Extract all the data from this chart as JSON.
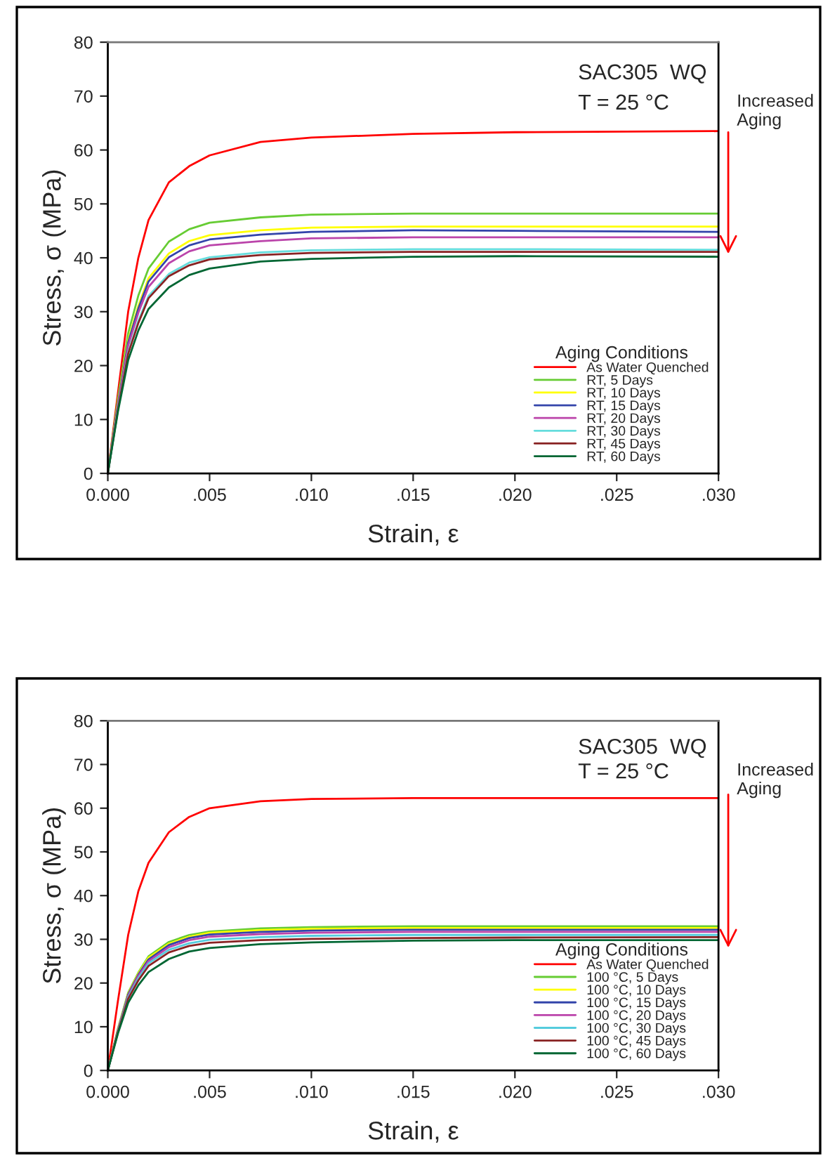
{
  "chart_data": [
    {
      "type": "line",
      "xlabel": "Strain, ε",
      "ylabel": "Stress, σ (MPa)",
      "legend_title": "Aging Conditions",
      "legend": "bottom right",
      "grid": false,
      "marker": "none",
      "line_style": "solid",
      "annotations": [
        "SAC305  WQ",
        "T = 25 °C",
        "Increased\nAging"
      ],
      "xlim": [
        0,
        0.03
      ],
      "ylim": [
        0,
        80
      ],
      "xticks": [
        {
          "value": 0,
          "label": "0.000"
        },
        {
          "value": 0.005,
          "label": ".005"
        },
        {
          "value": 0.01,
          "label": ".010"
        },
        {
          "value": 0.015,
          "label": ".015"
        },
        {
          "value": 0.02,
          "label": ".020"
        },
        {
          "value": 0.025,
          "label": ".025"
        },
        {
          "value": 0.03,
          "label": ".030"
        }
      ],
      "yticks": [
        0,
        10,
        20,
        30,
        40,
        50,
        60,
        70,
        80
      ],
      "x": [
        0,
        0.0005,
        0.001,
        0.0015,
        0.002,
        0.003,
        0.004,
        0.005,
        0.0075,
        0.01,
        0.015,
        0.02,
        0.03
      ],
      "series": [
        {
          "name": "As Water Quenched",
          "color": "#ff0000",
          "values": [
            0,
            15,
            30,
            40,
            47,
            54,
            57,
            59,
            61.5,
            62.3,
            63,
            63.3,
            63.5
          ]
        },
        {
          "name": "RT, 5 Days",
          "color": "#66cc33",
          "values": [
            0,
            14,
            26,
            33,
            38,
            43,
            45.3,
            46.5,
            47.5,
            48,
            48.2,
            48.2,
            48.2
          ]
        },
        {
          "name": "RT, 10 Days",
          "color": "#ffff00",
          "values": [
            0,
            13.3,
            24.7,
            31.1,
            36.2,
            40.8,
            43.1,
            44.2,
            45.1,
            45.6,
            45.8,
            45.8,
            45.8
          ]
        },
        {
          "name": "RT, 15 Days",
          "color": "#3344aa",
          "values": [
            0,
            13,
            24.3,
            30.6,
            35.6,
            40.1,
            42.3,
            43.4,
            44.3,
            44.8,
            45.1,
            45,
            44.8
          ]
        },
        {
          "name": "RT, 20 Days",
          "color": "#bb44aa",
          "values": [
            0,
            12.7,
            23.7,
            29.8,
            34.6,
            39,
            41.2,
            42.3,
            43.1,
            43.6,
            43.8,
            43.8,
            43.8
          ]
        },
        {
          "name": "RT, 30 Days",
          "color": "#66dddd",
          "values": [
            0,
            12.1,
            22.5,
            28.3,
            32.9,
            37,
            39.1,
            40.1,
            41,
            41.4,
            41.6,
            41.6,
            41.5
          ]
        },
        {
          "name": "RT, 45 Days",
          "color": "#882222",
          "values": [
            0,
            11.9,
            22.2,
            27.9,
            32.5,
            36.6,
            38.6,
            39.7,
            40.5,
            40.9,
            41.1,
            41.1,
            41.1
          ]
        },
        {
          "name": "RT, 60 Days",
          "color": "#006633",
          "values": [
            0,
            11.5,
            21,
            26.5,
            30.5,
            34.5,
            36.8,
            38,
            39.3,
            39.8,
            40.2,
            40.3,
            40.2
          ]
        }
      ]
    },
    {
      "type": "line",
      "xlabel": "Strain, ε",
      "ylabel": "Stress, σ (MPa)",
      "legend_title": "Aging Conditions",
      "legend": "bottom right",
      "grid": false,
      "marker": "none",
      "line_style": "solid",
      "annotations": [
        "SAC305  WQ",
        "T = 25 °C",
        "Increased\nAging"
      ],
      "xlim": [
        0,
        0.03
      ],
      "ylim": [
        0,
        80
      ],
      "xticks": [
        {
          "value": 0,
          "label": "0.000"
        },
        {
          "value": 0.005,
          "label": ".005"
        },
        {
          "value": 0.01,
          "label": ".010"
        },
        {
          "value": 0.015,
          "label": ".015"
        },
        {
          "value": 0.02,
          "label": ".020"
        },
        {
          "value": 0.025,
          "label": ".025"
        },
        {
          "value": 0.03,
          "label": ".030"
        }
      ],
      "yticks": [
        0,
        10,
        20,
        30,
        40,
        50,
        60,
        70,
        80
      ],
      "x": [
        0,
        0.0005,
        0.001,
        0.0015,
        0.002,
        0.003,
        0.004,
        0.005,
        0.0075,
        0.01,
        0.015,
        0.02,
        0.03
      ],
      "series": [
        {
          "name": "As Water Quenched",
          "color": "#ff0000",
          "values": [
            0,
            16,
            31,
            41,
            47.5,
            54.5,
            58,
            60,
            61.6,
            62.1,
            62.3,
            62.3,
            62.3
          ]
        },
        {
          "name": "100 °C, 5 Days",
          "color": "#66cc33",
          "values": [
            0,
            9.6,
            17.8,
            22.4,
            26.1,
            29.4,
            31,
            31.8,
            32.5,
            32.8,
            33,
            33,
            33
          ]
        },
        {
          "name": "100 °C, 10 Days",
          "color": "#ffff00",
          "values": [
            0,
            9.5,
            17.6,
            22.2,
            25.8,
            29,
            30.6,
            31.5,
            32.1,
            32.4,
            32.6,
            32.6,
            32.6
          ]
        },
        {
          "name": "100 °C, 15 Days",
          "color": "#3344aa",
          "values": [
            0,
            9.3,
            17.4,
            21.9,
            25.4,
            28.7,
            30.3,
            31.1,
            31.7,
            32,
            32.2,
            32.2,
            32.2
          ]
        },
        {
          "name": "100 °C, 20 Days",
          "color": "#bb44aa",
          "values": [
            0,
            9.2,
            17.1,
            21.6,
            25,
            28.2,
            29.8,
            30.6,
            31.2,
            31.5,
            31.7,
            31.7,
            31.7
          ]
        },
        {
          "name": "100 °C, 30 Days",
          "color": "#55ccdd",
          "values": [
            0,
            9,
            16.7,
            21.1,
            24.5,
            27.6,
            29.1,
            29.9,
            30.5,
            30.8,
            31,
            31,
            31
          ]
        },
        {
          "name": "100 °C, 45 Days",
          "color": "#882222",
          "values": [
            0,
            8.8,
            16.4,
            20.6,
            23.9,
            27,
            28.5,
            29.2,
            29.8,
            30.1,
            30.3,
            30.4,
            30.5
          ]
        },
        {
          "name": "100 °C, 60 Days",
          "color": "#006633",
          "values": [
            0,
            8.5,
            15.5,
            19.5,
            22.5,
            25.5,
            27.2,
            28,
            28.9,
            29.3,
            29.7,
            29.8,
            29.8
          ]
        }
      ]
    }
  ]
}
